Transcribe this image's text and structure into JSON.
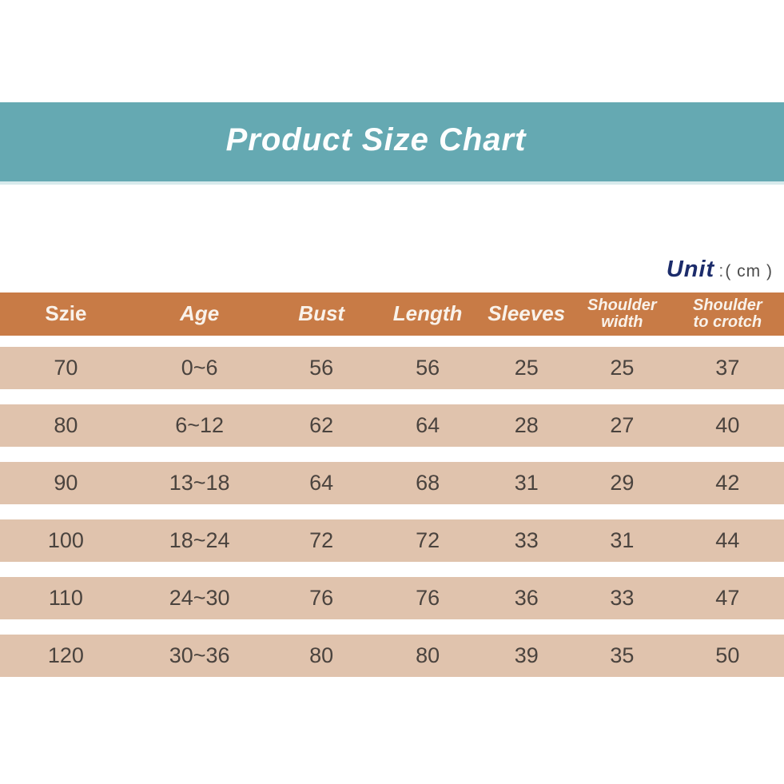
{
  "banner": {
    "title": "Product Size Chart"
  },
  "unit": {
    "label": "Unit",
    "colon": ":",
    "value": "( cm )"
  },
  "colors": {
    "banner_bg": "#65a9b2",
    "banner_edge": "#d7eaec",
    "banner_title_text": "#fcfefe",
    "header_bg": "#c87b46",
    "header_text": "#f9f2ea",
    "row_bg": "#e0c3ad",
    "row_text": "#4a433e",
    "unit_label_text": "#1c2c6b",
    "unit_value_text": "#4c4c4c",
    "page_bg": "#ffffff"
  },
  "table": {
    "columns": [
      {
        "key": "size",
        "label": "Szie",
        "wrap": false
      },
      {
        "key": "age",
        "label": "Age",
        "wrap": false
      },
      {
        "key": "bust",
        "label": "Bust",
        "wrap": false
      },
      {
        "key": "length",
        "label": "Length",
        "wrap": false
      },
      {
        "key": "sleeves",
        "label": "Sleeves",
        "wrap": false
      },
      {
        "key": "shoulder-width",
        "label": "Shoulder\nwidth",
        "wrap": true
      },
      {
        "key": "shoulder-to-crotch",
        "label": "Shoulder\nto crotch",
        "wrap": true
      }
    ],
    "rows": [
      [
        "70",
        "0~6",
        "56",
        "56",
        "25",
        "25",
        "37"
      ],
      [
        "80",
        "6~12",
        "62",
        "64",
        "28",
        "27",
        "40"
      ],
      [
        "90",
        "13~18",
        "64",
        "68",
        "31",
        "29",
        "42"
      ],
      [
        "100",
        "18~24",
        "72",
        "72",
        "33",
        "31",
        "44"
      ],
      [
        "110",
        "24~30",
        "76",
        "76",
        "36",
        "33",
        "47"
      ],
      [
        "120",
        "30~36",
        "80",
        "80",
        "39",
        "35",
        "50"
      ]
    ]
  },
  "chart_data": {
    "type": "table",
    "title": "Product Size Chart",
    "unit": "cm",
    "columns": [
      "Szie",
      "Age",
      "Bust",
      "Length",
      "Sleeves",
      "Shoulder width",
      "Shoulder to crotch"
    ],
    "rows": [
      [
        70,
        "0~6",
        56,
        56,
        25,
        25,
        37
      ],
      [
        80,
        "6~12",
        62,
        64,
        28,
        27,
        40
      ],
      [
        90,
        "13~18",
        64,
        68,
        31,
        29,
        42
      ],
      [
        100,
        "18~24",
        72,
        72,
        33,
        31,
        44
      ],
      [
        110,
        "24~30",
        76,
        76,
        36,
        33,
        47
      ],
      [
        120,
        "30~36",
        80,
        80,
        39,
        35,
        50
      ]
    ],
    "layout_hints": {
      "header_row": "orange band",
      "body_rows": "tan bands separated by white gaps",
      "unit_note_position": "top-right above header"
    }
  }
}
